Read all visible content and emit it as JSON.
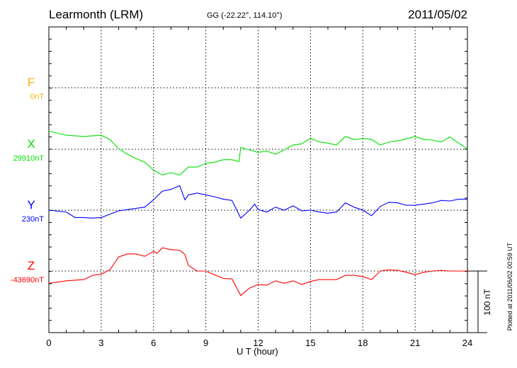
{
  "chart_data": {
    "type": "line",
    "title": "Learmonth (LRM)",
    "subtitle": "GG (-22.22°, 114.10°)",
    "date": "2011/05/02",
    "xlabel": "U T (hour)",
    "xlim": [
      0,
      24
    ],
    "xticks": [
      "0",
      "3",
      "6",
      "9",
      "12",
      "15",
      "18",
      "21",
      "24"
    ],
    "scale_label": "100 nT",
    "scale_nT": 100,
    "footer": "Plotted at 2011/06/02 00:59 UT",
    "components": [
      {
        "name": "F",
        "baseline_label": "0nT",
        "color": "#ffb000",
        "x": [],
        "values": []
      },
      {
        "name": "X",
        "baseline_label": "29910nT",
        "color": "#00e000",
        "x": [
          0,
          1,
          2,
          3,
          3.5,
          4,
          4.5,
          5,
          5.5,
          6,
          6.5,
          7,
          7.5,
          8,
          8.5,
          9,
          9.5,
          10,
          10.5,
          10.9,
          11,
          11.5,
          12,
          12.5,
          13,
          13.5,
          14,
          14.5,
          15,
          15.5,
          16,
          16.5,
          17,
          17.5,
          18,
          18.5,
          19,
          19.5,
          20,
          20.5,
          21,
          21.5,
          22,
          22.5,
          23,
          23.5,
          24
        ],
        "values": [
          30,
          23,
          21,
          23,
          16,
          1,
          -8,
          -15,
          -21,
          -34,
          -42,
          -38,
          -42,
          -29,
          -29,
          -23,
          -21,
          -17,
          -17,
          -20,
          3,
          -1,
          -5,
          -3,
          -8,
          -1,
          7,
          9,
          18,
          12,
          10,
          7,
          21,
          16,
          18,
          16,
          7,
          12,
          14,
          17,
          21,
          16,
          15,
          12,
          20,
          10,
          1
        ]
      },
      {
        "name": "Y",
        "baseline_label": "230nT",
        "color": "#0000ff",
        "x": [
          0,
          1,
          1.5,
          2,
          2.5,
          3,
          4,
          5,
          5.5,
          6,
          6.5,
          7,
          7.5,
          7.8,
          8,
          8.5,
          9,
          9.5,
          10,
          10.5,
          11,
          11.5,
          11.8,
          12,
          12.5,
          13,
          13.5,
          14,
          14.5,
          15,
          15.5,
          16,
          16.5,
          17,
          17.5,
          18,
          18.5,
          19,
          19.5,
          20,
          20.5,
          21,
          21.5,
          22,
          22.5,
          23,
          23.5,
          24
        ],
        "values": [
          0,
          -3,
          -12,
          -12,
          -13,
          -12,
          -1,
          3,
          5,
          17,
          31,
          34,
          40,
          17,
          25,
          28,
          25,
          22,
          18,
          16,
          -13,
          0,
          10,
          1,
          -3,
          5,
          0,
          7,
          -1,
          0,
          -3,
          -5,
          -3,
          12,
          5,
          0,
          -9,
          6,
          13,
          12,
          8,
          8,
          10,
          12,
          16,
          15,
          18,
          18
        ]
      },
      {
        "name": "Z",
        "baseline_label": "-43690nT",
        "color": "#ff0000",
        "x": [
          0,
          1,
          2,
          2.5,
          3,
          3.5,
          4,
          4.5,
          5,
          5.5,
          6,
          6.2,
          6.5,
          7,
          7.5,
          7.8,
          8,
          8.5,
          9,
          9.5,
          10,
          10.5,
          11,
          11.5,
          12,
          12.5,
          13,
          13.5,
          14,
          14.5,
          15,
          15.5,
          16,
          16.5,
          17,
          17.5,
          18,
          18.5,
          19,
          19.5,
          20,
          20.5,
          21,
          21.5,
          22,
          22.5,
          23,
          23.5,
          24
        ],
        "values": [
          -20,
          -16,
          -14,
          -7,
          -5,
          2,
          23,
          28,
          28,
          24,
          32,
          29,
          38,
          35,
          34,
          27,
          9,
          0,
          0,
          -6,
          -12,
          -13,
          -40,
          -28,
          -22,
          -23,
          -16,
          -20,
          -16,
          -22,
          -17,
          -14,
          -14,
          -14,
          -7,
          -7,
          -9,
          -14,
          0,
          2,
          1,
          -2,
          -6,
          -2,
          0,
          1,
          0,
          0,
          0
        ]
      }
    ]
  }
}
